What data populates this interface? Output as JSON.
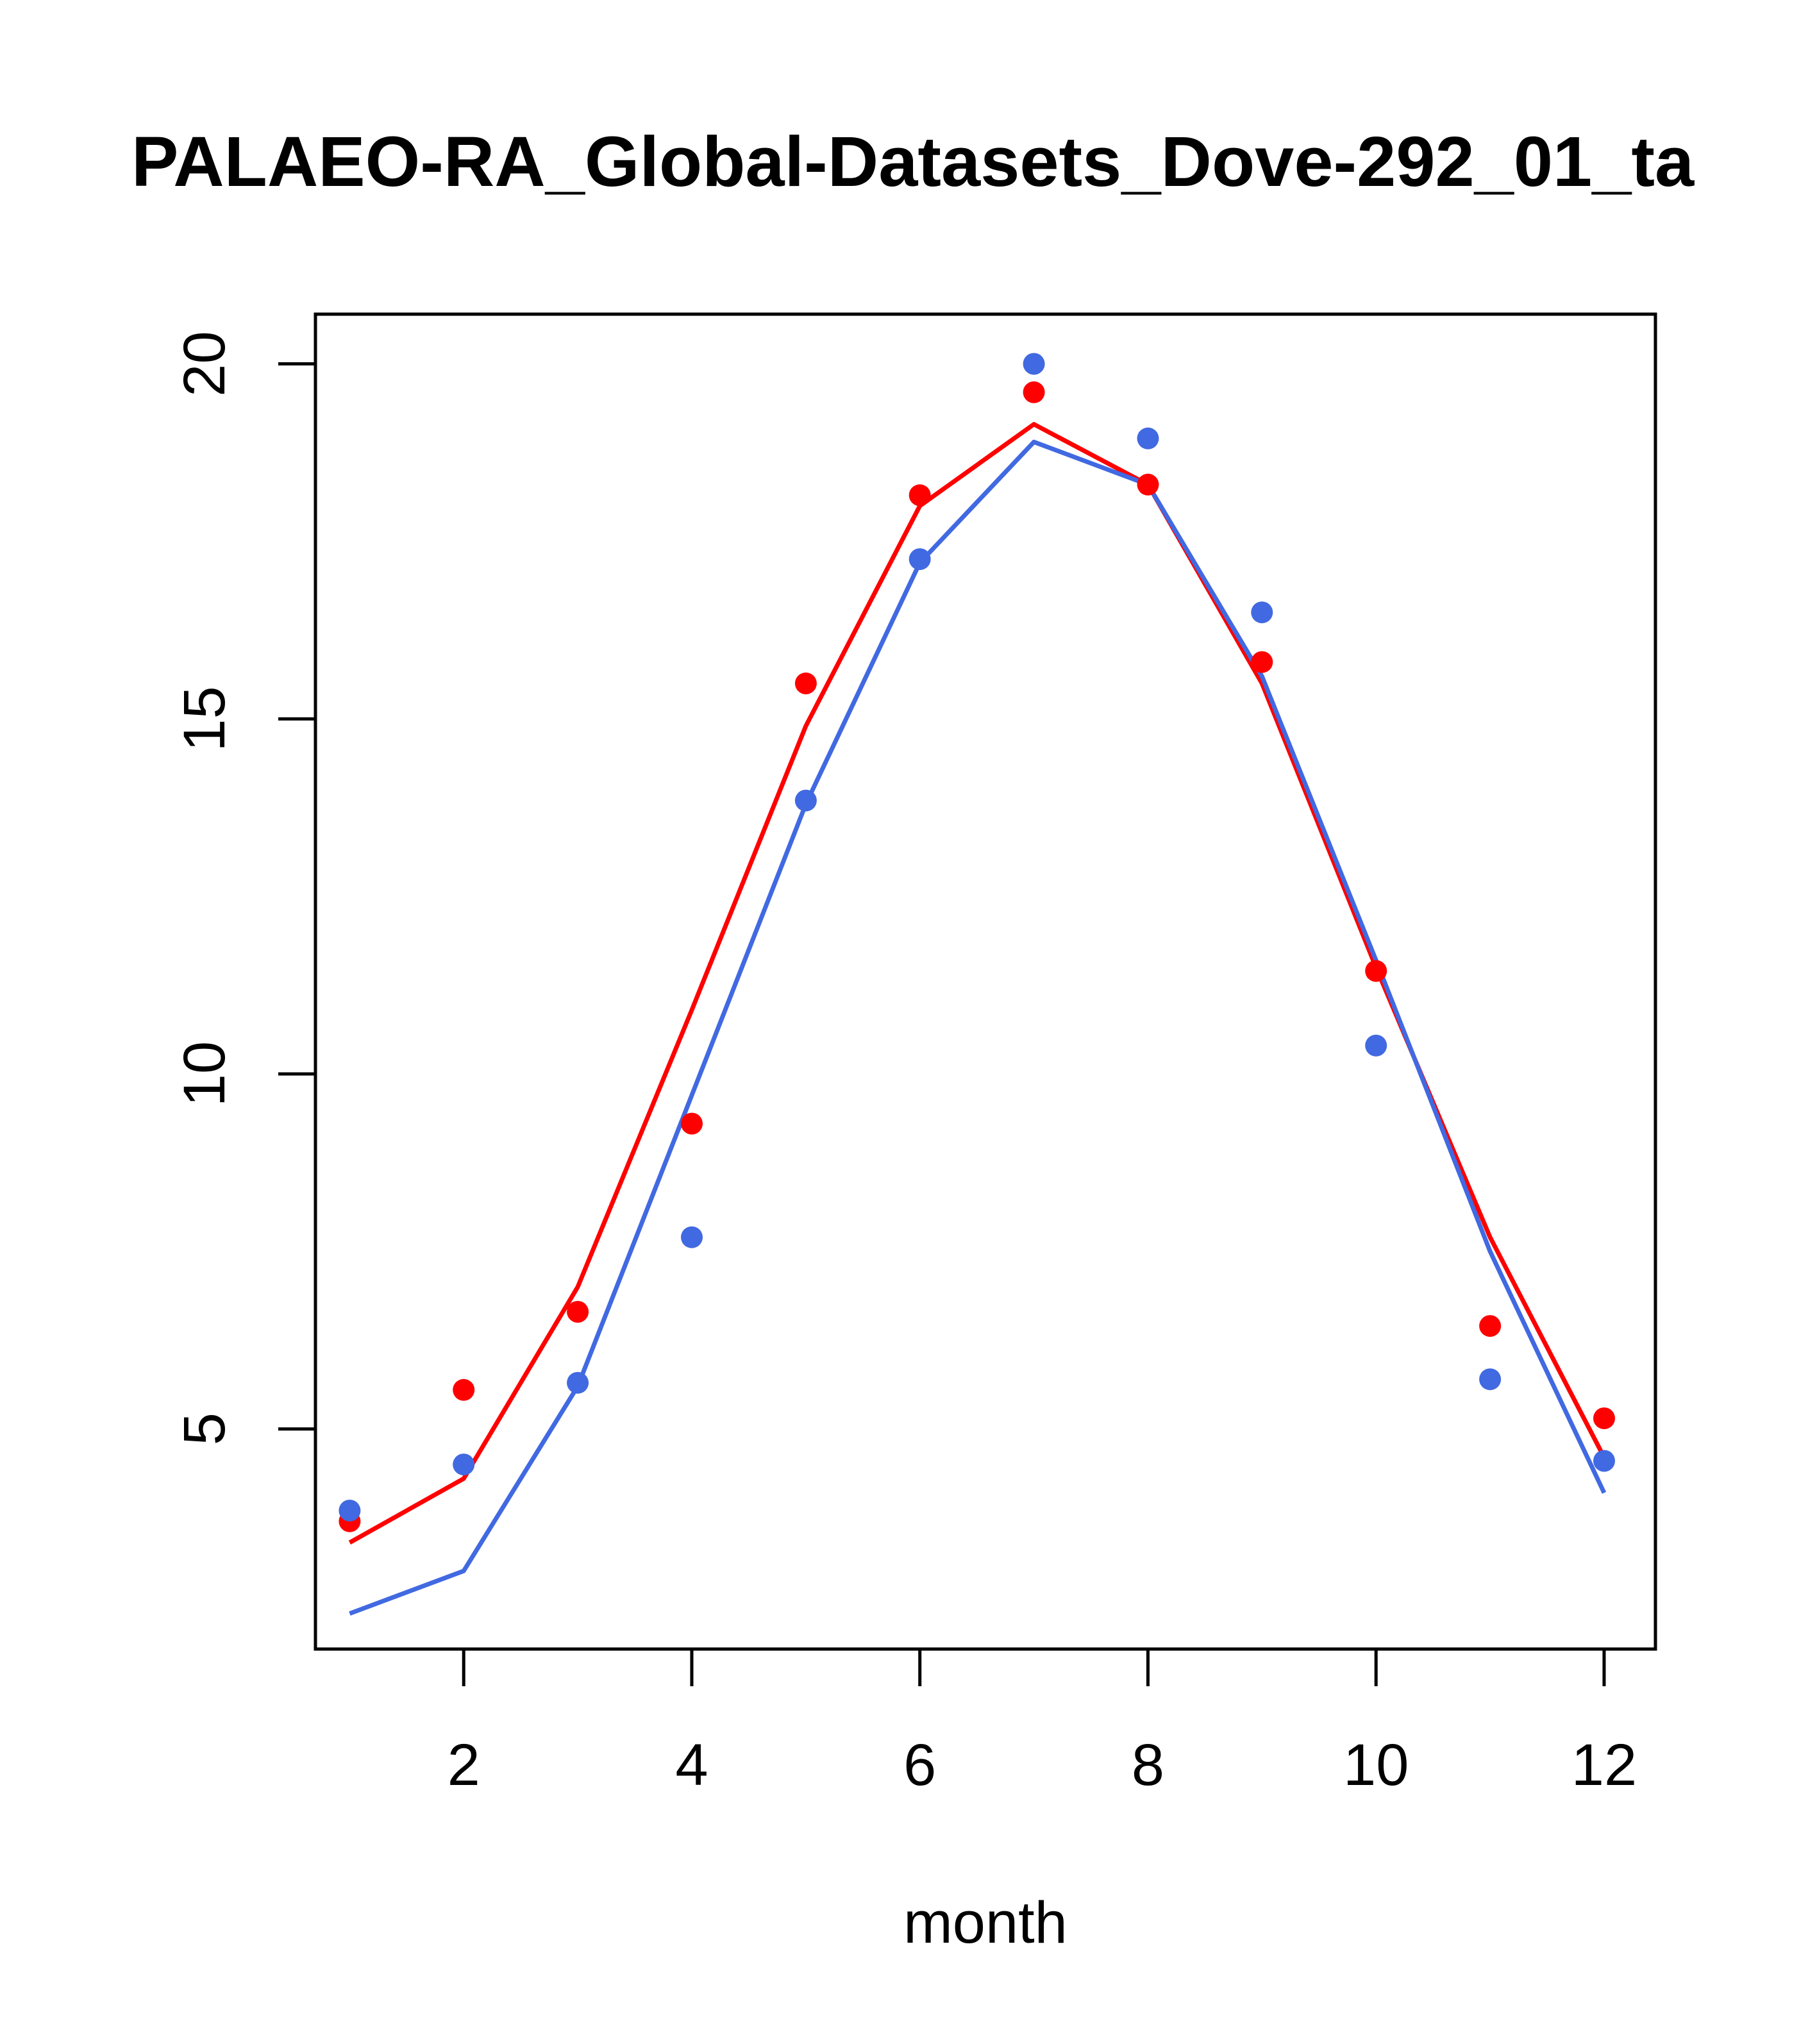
{
  "chart_data": {
    "type": "line",
    "title": "PALAEO-RA_Global-Datasets_Dove-292_01_ta",
    "xlabel": "month",
    "ylabel": "",
    "xlim": [
      0.7,
      12.45
    ],
    "ylim": [
      1.9,
      20.7
    ],
    "x_ticks": [
      2,
      4,
      6,
      8,
      10,
      12
    ],
    "y_ticks": [
      5,
      10,
      15,
      20
    ],
    "grid": false,
    "legend": "none",
    "series": [
      {
        "color": "#ff0000",
        "line": {
          "x": [
            1,
            2,
            3,
            4,
            5,
            6,
            7,
            8,
            9,
            10,
            11,
            12
          ],
          "y": [
            3.4,
            4.3,
            7.0,
            10.9,
            14.9,
            18.0,
            19.15,
            18.3,
            15.5,
            11.5,
            7.7,
            4.6
          ]
        },
        "points": {
          "x": [
            1,
            2,
            3,
            4,
            5,
            6,
            7,
            8,
            9,
            10,
            11,
            12
          ],
          "y": [
            3.7,
            5.55,
            6.65,
            9.3,
            15.5,
            18.15,
            19.6,
            18.3,
            15.8,
            11.45,
            6.45,
            5.15
          ]
        }
      },
      {
        "color": "#4169e1",
        "line": {
          "x": [
            1,
            2,
            3,
            4,
            5,
            6,
            7,
            8,
            9,
            10,
            11,
            12
          ],
          "y": [
            2.4,
            3.0,
            5.6,
            9.7,
            13.8,
            17.2,
            18.9,
            18.3,
            15.6,
            11.6,
            7.5,
            4.1
          ]
        },
        "points": {
          "x": [
            1,
            2,
            3,
            4,
            5,
            6,
            7,
            8,
            9,
            10,
            11,
            12
          ],
          "y": [
            3.85,
            4.5,
            5.65,
            7.7,
            13.85,
            17.25,
            20.0,
            18.95,
            16.5,
            10.4,
            5.7,
            4.55
          ]
        }
      }
    ]
  }
}
